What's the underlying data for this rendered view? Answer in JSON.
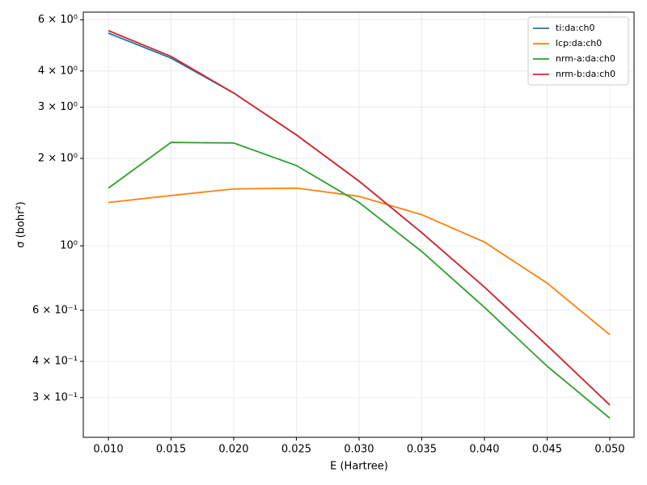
{
  "chart_data": {
    "type": "line",
    "xlabel": "E (Hartree)",
    "ylabel": "σ (bohr²)",
    "x": [
      0.01,
      0.015,
      0.02,
      0.025,
      0.03,
      0.035,
      0.04,
      0.045,
      0.05
    ],
    "series": [
      {
        "name": "ti:da:ch0",
        "color": "#1f77b4",
        "values": [
          5.4,
          4.43,
          3.36,
          2.41,
          1.67,
          1.11,
          0.721,
          0.454,
          0.283
        ]
      },
      {
        "name": "lcp:da:ch0",
        "color": "#ff7f0e",
        "values": [
          1.41,
          1.49,
          1.57,
          1.58,
          1.48,
          1.28,
          1.03,
          0.744,
          0.494
        ]
      },
      {
        "name": "nrm-a:da:ch0",
        "color": "#2ca02c",
        "values": [
          1.58,
          2.27,
          2.26,
          1.89,
          1.41,
          0.956,
          0.614,
          0.385,
          0.255
        ]
      },
      {
        "name": "nrm-b:da:ch0",
        "color": "#d62728",
        "values": [
          5.51,
          4.49,
          3.36,
          2.41,
          1.67,
          1.11,
          0.721,
          0.454,
          0.283
        ]
      }
    ],
    "xlim": [
      0.008,
      0.05194
    ],
    "xticks": [
      {
        "value": 0.01,
        "label": "0.010"
      },
      {
        "value": 0.015,
        "label": "0.015"
      },
      {
        "value": 0.02,
        "label": "0.020"
      },
      {
        "value": 0.025,
        "label": "0.025"
      },
      {
        "value": 0.03,
        "label": "0.030"
      },
      {
        "value": 0.035,
        "label": "0.035"
      },
      {
        "value": 0.04,
        "label": "0.040"
      },
      {
        "value": 0.045,
        "label": "0.045"
      },
      {
        "value": 0.05,
        "label": "0.050"
      }
    ],
    "ylim": [
      0.219,
      6.38
    ],
    "yscale": "log",
    "yticks": [
      {
        "value": 0.3,
        "label": "3 × 10⁻¹"
      },
      {
        "value": 0.4,
        "label": "4 × 10⁻¹"
      },
      {
        "value": 0.6,
        "label": "6 × 10⁻¹"
      },
      {
        "value": 1,
        "label": "10⁰"
      },
      {
        "value": 2,
        "label": "2 × 10⁰"
      },
      {
        "value": 3,
        "label": "3 × 10⁰"
      },
      {
        "value": 4,
        "label": "4 × 10⁰"
      },
      {
        "value": 6,
        "label": "6 × 10⁰"
      }
    ],
    "grid": true,
    "legend": "upper right"
  }
}
